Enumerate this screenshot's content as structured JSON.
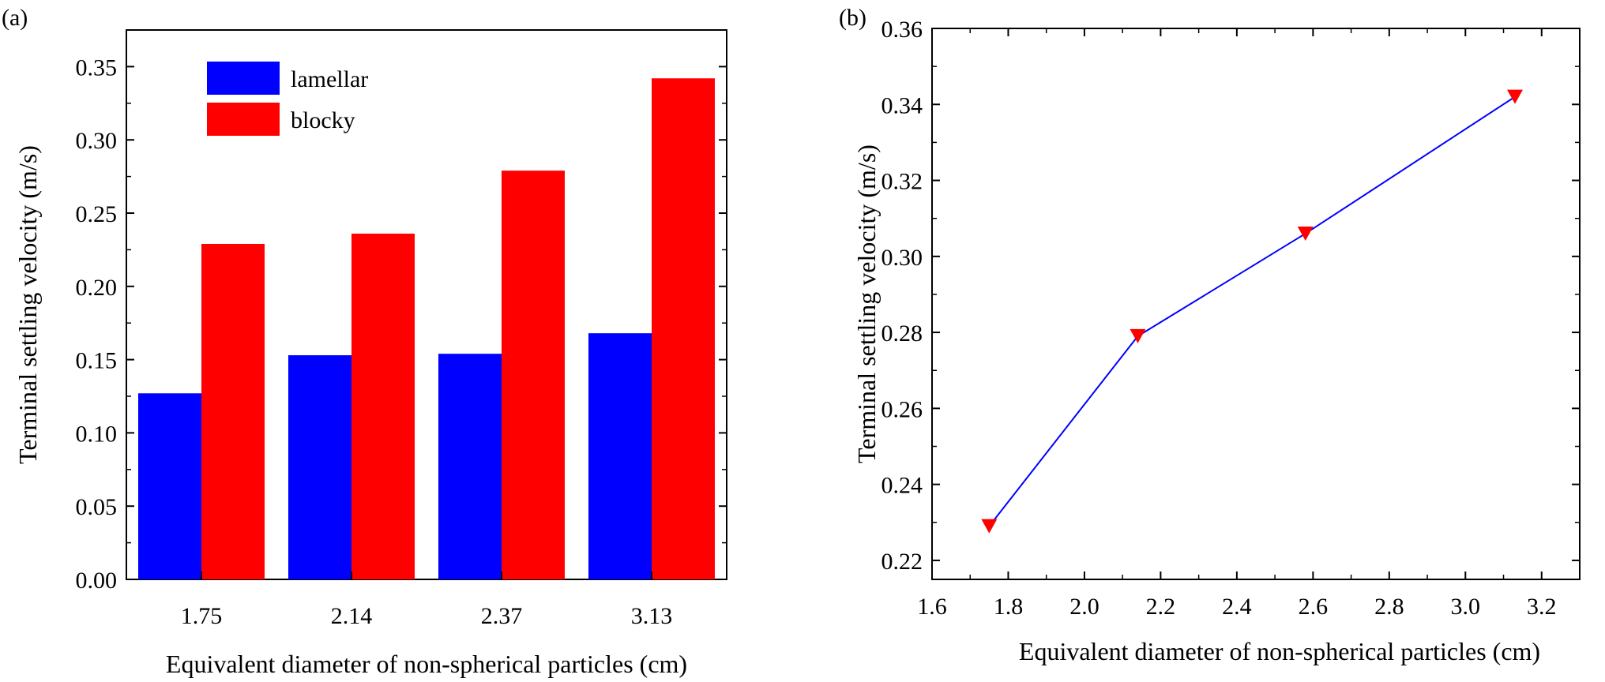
{
  "panels": {
    "a_label": "(a)",
    "b_label": "(b)"
  },
  "chart_data": [
    {
      "type": "bar",
      "panel": "(a)",
      "title": "",
      "xlabel": "Equivalent diameter of non-spherical particles (cm)",
      "ylabel": "Terminal settling velocity (m/s)",
      "categories": [
        "1.75",
        "2.14",
        "2.37",
        "3.13"
      ],
      "series": [
        {
          "name": "lamellar",
          "color": "#0000FF",
          "values": [
            0.127,
            0.153,
            0.154,
            0.168
          ]
        },
        {
          "name": "blocky",
          "color": "#FF0000",
          "values": [
            0.229,
            0.236,
            0.279,
            0.342
          ]
        }
      ],
      "ylim": [
        0,
        0.375
      ],
      "yticks": [
        "0.00",
        "0.05",
        "0.10",
        "0.15",
        "0.20",
        "0.25",
        "0.30",
        "0.35"
      ],
      "grid": false,
      "legend": "top-left"
    },
    {
      "type": "line",
      "panel": "(b)",
      "title": "",
      "xlabel": "Equivalent diameter of non-spherical particles (cm)",
      "ylabel": "Terminal settling velocity (m/s)",
      "x": [
        1.75,
        2.14,
        2.58,
        3.13
      ],
      "series": [
        {
          "name": "blocky",
          "line_color": "#0000FF",
          "marker_color": "#FF0000",
          "marker": "down-triangle",
          "values": [
            0.229,
            0.279,
            0.306,
            0.342
          ]
        }
      ],
      "xlim": [
        1.6,
        3.3
      ],
      "ylim": [
        0.215,
        0.36
      ],
      "xticks": [
        "1.6",
        "1.8",
        "2.0",
        "2.2",
        "2.4",
        "2.6",
        "2.8",
        "3.0",
        "3.2"
      ],
      "yticks": [
        "0.22",
        "0.24",
        "0.26",
        "0.28",
        "0.30",
        "0.32",
        "0.34",
        "0.36"
      ],
      "grid": false,
      "legend": "none"
    }
  ]
}
